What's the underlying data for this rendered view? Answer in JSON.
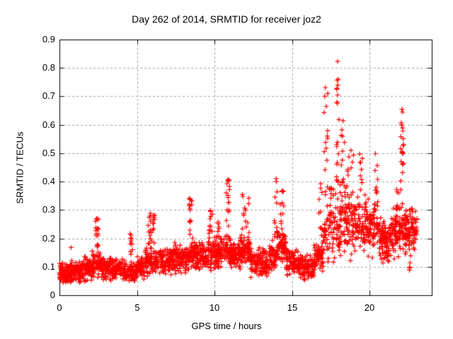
{
  "chart_data": {
    "type": "scatter",
    "title": "Day 262 of 2014, SRMTID for receiver joz2",
    "xlabel": "GPS time / hours",
    "ylabel": "SRMTID / TECUs",
    "xlim": [
      0,
      24
    ],
    "ylim": [
      0,
      0.9
    ],
    "xticks": {
      "values": [
        0,
        5,
        10,
        15,
        20
      ],
      "labels": [
        "0",
        "5",
        "10",
        "15",
        "20"
      ]
    },
    "yticks": {
      "values": [
        0,
        0.1,
        0.2,
        0.3,
        0.4,
        0.5,
        0.6,
        0.7,
        0.8,
        0.9
      ],
      "labels": [
        "0",
        "0.1",
        "0.2",
        "0.3",
        "0.4",
        "0.5",
        "0.6",
        "0.7",
        "0.8",
        "0.9"
      ]
    },
    "grid": {
      "style": "dashed",
      "on": true
    },
    "legend": {
      "shown": false
    },
    "colors": {
      "marker": "#ff0000",
      "grid": "#a3a3a3",
      "axis": "#000000",
      "background": "#ffffff"
    },
    "marker": {
      "shape": "plus",
      "size": 7
    },
    "seed": 2014262,
    "segments_format": "[t_start_hours, t_end_hours, count, v_min_TECU, v_max_TECU] dense band, triangular spread",
    "segments": [
      [
        0.0,
        0.7,
        95,
        0.035,
        0.115
      ],
      [
        0.7,
        1.35,
        75,
        0.04,
        0.13
      ],
      [
        1.35,
        2.1,
        85,
        0.045,
        0.14
      ],
      [
        2.1,
        2.65,
        60,
        0.055,
        0.16
      ],
      [
        2.65,
        3.4,
        85,
        0.05,
        0.14
      ],
      [
        3.4,
        4.2,
        85,
        0.05,
        0.135
      ],
      [
        4.2,
        4.9,
        75,
        0.04,
        0.125
      ],
      [
        4.9,
        5.5,
        65,
        0.05,
        0.14
      ],
      [
        5.5,
        6.3,
        80,
        0.06,
        0.18
      ],
      [
        6.3,
        7.2,
        90,
        0.065,
        0.17
      ],
      [
        7.2,
        7.8,
        70,
        0.075,
        0.19
      ],
      [
        7.8,
        8.3,
        60,
        0.07,
        0.18
      ],
      [
        8.3,
        8.85,
        60,
        0.08,
        0.2
      ],
      [
        8.85,
        9.9,
        100,
        0.08,
        0.2
      ],
      [
        9.9,
        10.6,
        85,
        0.09,
        0.21
      ],
      [
        10.6,
        11.15,
        60,
        0.095,
        0.22
      ],
      [
        11.15,
        11.65,
        60,
        0.09,
        0.2
      ],
      [
        11.65,
        12.3,
        75,
        0.095,
        0.22
      ],
      [
        12.3,
        13.5,
        115,
        0.055,
        0.17
      ],
      [
        13.5,
        14.05,
        55,
        0.08,
        0.2
      ],
      [
        14.05,
        14.6,
        60,
        0.1,
        0.25
      ],
      [
        14.6,
        15.5,
        90,
        0.06,
        0.17
      ],
      [
        15.5,
        16.4,
        90,
        0.05,
        0.15
      ],
      [
        16.4,
        17.0,
        60,
        0.07,
        0.2
      ],
      [
        17.0,
        17.35,
        25,
        0.1,
        0.3
      ],
      [
        17.35,
        17.8,
        45,
        0.1,
        0.42
      ],
      [
        17.8,
        18.05,
        18,
        0.12,
        0.3
      ],
      [
        18.05,
        18.5,
        50,
        0.12,
        0.45
      ],
      [
        18.5,
        19.1,
        65,
        0.12,
        0.4
      ],
      [
        19.1,
        19.8,
        65,
        0.12,
        0.38
      ],
      [
        19.8,
        20.6,
        85,
        0.13,
        0.35
      ],
      [
        20.6,
        21.4,
        95,
        0.1,
        0.28
      ],
      [
        21.4,
        21.95,
        65,
        0.12,
        0.32
      ],
      [
        21.95,
        22.3,
        30,
        0.15,
        0.3
      ],
      [
        22.3,
        22.65,
        50,
        0.12,
        0.32
      ],
      [
        22.65,
        23.05,
        45,
        0.15,
        0.33
      ]
    ],
    "spikes_format": "[t_start_hours, t_end_hours, count, v_min_TECU, v_max_TECU] narrow column, uniform spread",
    "spikes": [
      [
        2.3,
        2.52,
        16,
        0.16,
        0.275
      ],
      [
        4.5,
        4.72,
        10,
        0.12,
        0.24
      ],
      [
        5.72,
        5.95,
        14,
        0.18,
        0.295
      ],
      [
        6.0,
        6.18,
        10,
        0.18,
        0.285
      ],
      [
        8.35,
        8.6,
        15,
        0.2,
        0.37
      ],
      [
        9.55,
        9.85,
        12,
        0.2,
        0.31
      ],
      [
        10.15,
        10.3,
        6,
        0.2,
        0.26
      ],
      [
        10.75,
        10.98,
        15,
        0.22,
        0.41
      ],
      [
        11.78,
        12.25,
        14,
        0.22,
        0.36
      ],
      [
        13.85,
        14.05,
        12,
        0.2,
        0.41
      ],
      [
        14.2,
        14.5,
        10,
        0.25,
        0.375
      ],
      [
        16.7,
        17.0,
        10,
        0.2,
        0.4
      ],
      [
        17.05,
        17.3,
        14,
        0.3,
        0.72
      ],
      [
        17.85,
        18.02,
        18,
        0.3,
        0.78
      ],
      [
        18.1,
        18.4,
        8,
        0.45,
        0.62
      ],
      [
        18.55,
        19.0,
        8,
        0.4,
        0.52
      ],
      [
        19.35,
        19.6,
        8,
        0.38,
        0.5
      ],
      [
        20.25,
        20.55,
        8,
        0.35,
        0.5
      ],
      [
        21.7,
        21.9,
        6,
        0.3,
        0.4
      ],
      [
        22.0,
        22.2,
        20,
        0.3,
        0.62
      ],
      [
        22.55,
        22.62,
        4,
        0.08,
        0.12
      ]
    ],
    "outliers_format": "[t_hours, v_TECU] exact notable points",
    "outliers": [
      [
        17.93,
        0.823
      ],
      [
        17.9,
        0.757
      ],
      [
        17.95,
        0.74
      ],
      [
        17.88,
        0.725
      ],
      [
        17.14,
        0.731
      ],
      [
        17.1,
        0.7
      ],
      [
        17.2,
        0.665
      ],
      [
        22.08,
        0.655
      ],
      [
        22.12,
        0.645
      ],
      [
        22.05,
        0.6
      ],
      [
        10.85,
        0.407
      ],
      [
        13.97,
        0.41
      ],
      [
        0.75,
        0.168
      ],
      [
        2.42,
        0.27
      ]
    ]
  }
}
